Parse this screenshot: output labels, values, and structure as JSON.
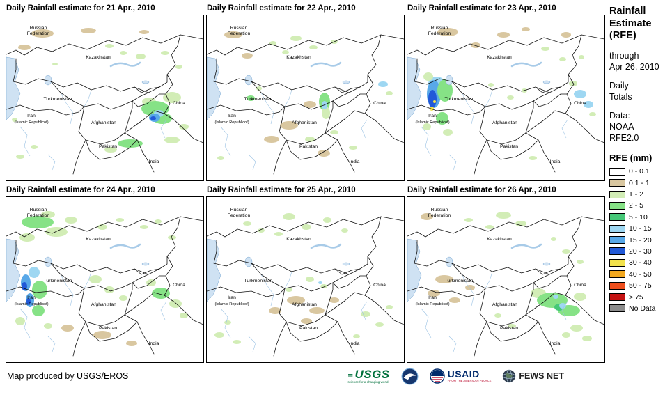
{
  "page": {
    "produced_by": "Map produced by USGS/EROS"
  },
  "map_labels": {
    "russia1": "Russian",
    "russia2": "Federation",
    "kazakhstan": "Kazakhstan",
    "turkmenistan": "Turkmenistan",
    "china": "China",
    "iran1": "Iran",
    "iran2": "(Islamic Republicof)",
    "afghanistan": "Afghanistan",
    "pakistan": "Pakistan",
    "india": "India"
  },
  "sidebar": {
    "title_lines": [
      "Rainfall",
      "Estimate",
      "(RFE)"
    ],
    "through_lines": [
      "through",
      "Apr 26, 2010"
    ],
    "totals_lines": [
      "Daily",
      "Totals"
    ],
    "source_lines": [
      "Data:",
      "NOAA-",
      "RFE2.0"
    ],
    "legend": {
      "title": "RFE (mm)",
      "items": [
        {
          "label": "0 - 0.1",
          "color": "#ffffff"
        },
        {
          "label": "0.1 - 1",
          "color": "#d9c7a0"
        },
        {
          "label": "1 - 2",
          "color": "#d2edb6"
        },
        {
          "label": "2 - 5",
          "color": "#86e286"
        },
        {
          "label": "5 - 10",
          "color": "#46c878"
        },
        {
          "label": "10 - 15",
          "color": "#9ed7f2"
        },
        {
          "label": "15 - 20",
          "color": "#58a8e8"
        },
        {
          "label": "20 - 30",
          "color": "#2159d8"
        },
        {
          "label": "30 - 40",
          "color": "#f2e24c"
        },
        {
          "label": "40 - 50",
          "color": "#f2a81f"
        },
        {
          "label": "50 - 75",
          "color": "#ee4f1d"
        },
        {
          "label": "> 75",
          "color": "#c41212"
        },
        {
          "label": "No Data",
          "color": "#8c8c8c"
        }
      ]
    }
  },
  "logos": {
    "usgs_name": "USGS",
    "usgs_tagline": "science for a changing world",
    "usaid_name": "USAID",
    "usaid_tagline": "FROM THE AMERICAN PEOPLE",
    "fews_name": "FEWS NET"
  },
  "panels": [
    {
      "title": "Daily Rainfall estimate for 21 Apr., 2010",
      "rain": [
        [
          52,
          26,
          16,
          6,
          1
        ],
        [
          118,
          22,
          11,
          4,
          1
        ],
        [
          26,
          46,
          9,
          4,
          1
        ],
        [
          198,
          24,
          7,
          3,
          1
        ],
        [
          148,
          44,
          6,
          3,
          2
        ],
        [
          168,
          54,
          5,
          3,
          2
        ],
        [
          193,
          59,
          7,
          4,
          2
        ],
        [
          228,
          54,
          6,
          3,
          2
        ],
        [
          248,
          74,
          5,
          3,
          2
        ],
        [
          205,
          124,
          10,
          6,
          2
        ],
        [
          238,
          118,
          13,
          8,
          2
        ],
        [
          214,
          134,
          20,
          11,
          3
        ],
        [
          224,
          148,
          14,
          8,
          3
        ],
        [
          219,
          141,
          7,
          5,
          5
        ],
        [
          213,
          147,
          8,
          6,
          6
        ],
        [
          211,
          148,
          4,
          3,
          7
        ],
        [
          178,
          184,
          18,
          6,
          3
        ],
        [
          150,
          193,
          9,
          4,
          2
        ],
        [
          238,
          179,
          11,
          5,
          2
        ],
        [
          255,
          160,
          7,
          4,
          2
        ],
        [
          20,
          203,
          6,
          3,
          2
        ],
        [
          40,
          189,
          5,
          3,
          2
        ],
        [
          12,
          150,
          4,
          3,
          2
        ],
        [
          70,
          70,
          4,
          2,
          2
        ]
      ]
    },
    {
      "title": "Daily Rainfall estimate for 22 Apr., 2010",
      "rain": [
        [
          38,
          28,
          13,
          5,
          1
        ],
        [
          58,
          58,
          8,
          4,
          1
        ],
        [
          148,
          128,
          9,
          5,
          1
        ],
        [
          118,
          158,
          13,
          6,
          1
        ],
        [
          93,
          178,
          11,
          5,
          1
        ],
        [
          168,
          198,
          9,
          5,
          1
        ],
        [
          128,
          33,
          8,
          4,
          2
        ],
        [
          153,
          46,
          6,
          3,
          2
        ],
        [
          183,
          38,
          5,
          3,
          2
        ],
        [
          113,
          53,
          5,
          3,
          2
        ],
        [
          95,
          40,
          5,
          3,
          2
        ],
        [
          169,
          124,
          8,
          13,
          3
        ],
        [
          171,
          140,
          6,
          9,
          2
        ],
        [
          169,
          129,
          4,
          6,
          5
        ],
        [
          63,
          119,
          6,
          4,
          3
        ],
        [
          75,
          105,
          4,
          3,
          2
        ],
        [
          253,
          99,
          7,
          4,
          5
        ],
        [
          262,
          112,
          5,
          3,
          2
        ],
        [
          148,
          178,
          7,
          4,
          2
        ],
        [
          183,
          168,
          6,
          3,
          2
        ],
        [
          210,
          190,
          6,
          3,
          2
        ],
        [
          20,
          205,
          5,
          3,
          2
        ]
      ]
    },
    {
      "title": "Daily Rainfall estimate for 23 Apr., 2010",
      "rain": [
        [
          58,
          24,
          15,
          6,
          1
        ],
        [
          138,
          28,
          9,
          4,
          1
        ],
        [
          98,
          43,
          7,
          4,
          1
        ],
        [
          228,
          28,
          7,
          4,
          1
        ],
        [
          170,
          20,
          6,
          3,
          1
        ],
        [
          42,
          98,
          12,
          10,
          5
        ],
        [
          38,
          113,
          10,
          20,
          6
        ],
        [
          36,
          120,
          6,
          13,
          7
        ],
        [
          35,
          134,
          3,
          3,
          8
        ],
        [
          39,
          124,
          2,
          2,
          8
        ],
        [
          54,
          108,
          11,
          16,
          3
        ],
        [
          50,
          148,
          9,
          9,
          3
        ],
        [
          30,
          88,
          7,
          6,
          2
        ],
        [
          58,
          168,
          7,
          5,
          2
        ],
        [
          28,
          160,
          6,
          5,
          2
        ],
        [
          248,
          113,
          9,
          6,
          5
        ],
        [
          260,
          128,
          7,
          5,
          5
        ],
        [
          238,
          98,
          6,
          4,
          2
        ],
        [
          266,
          142,
          5,
          3,
          2
        ],
        [
          198,
          48,
          6,
          3,
          2
        ],
        [
          223,
          63,
          5,
          3,
          2
        ],
        [
          250,
          60,
          4,
          3,
          2
        ],
        [
          148,
          118,
          5,
          3,
          2
        ],
        [
          168,
          108,
          4,
          3,
          2
        ],
        [
          120,
          100,
          4,
          3,
          2
        ],
        [
          180,
          205,
          6,
          3,
          2
        ]
      ]
    },
    {
      "title": "Daily Rainfall estimate for 24 Apr., 2010",
      "rain": [
        [
          45,
          36,
          23,
          9,
          3
        ],
        [
          72,
          50,
          16,
          7,
          2
        ],
        [
          30,
          58,
          11,
          6,
          2
        ],
        [
          93,
          33,
          9,
          5,
          2
        ],
        [
          60,
          25,
          10,
          5,
          2
        ],
        [
          138,
          43,
          7,
          4,
          2
        ],
        [
          163,
          33,
          6,
          3,
          2
        ],
        [
          198,
          43,
          6,
          3,
          2
        ],
        [
          238,
          58,
          6,
          3,
          2
        ],
        [
          218,
          35,
          5,
          3,
          2
        ],
        [
          40,
          108,
          8,
          8,
          5
        ],
        [
          28,
          123,
          7,
          12,
          6
        ],
        [
          34,
          148,
          6,
          10,
          6
        ],
        [
          26,
          128,
          4,
          6,
          7
        ],
        [
          32,
          150,
          3,
          5,
          7
        ],
        [
          48,
          133,
          11,
          13,
          3
        ],
        [
          46,
          163,
          9,
          8,
          3
        ],
        [
          20,
          178,
          7,
          6,
          2
        ],
        [
          60,
          185,
          6,
          4,
          2
        ],
        [
          128,
          118,
          9,
          6,
          2
        ],
        [
          148,
          133,
          7,
          5,
          2
        ],
        [
          168,
          145,
          6,
          4,
          2
        ],
        [
          222,
          138,
          13,
          8,
          3
        ],
        [
          243,
          153,
          9,
          6,
          2
        ],
        [
          208,
          123,
          7,
          5,
          2
        ],
        [
          255,
          170,
          6,
          4,
          2
        ],
        [
          138,
          198,
          13,
          6,
          1
        ],
        [
          88,
          188,
          9,
          5,
          1
        ],
        [
          180,
          210,
          8,
          4,
          1
        ]
      ]
    },
    {
      "title": "Daily Rainfall estimate for 25 Apr., 2010",
      "rain": [
        [
          118,
          28,
          9,
          5,
          2
        ],
        [
          143,
          43,
          7,
          4,
          2
        ],
        [
          173,
          33,
          6,
          4,
          2
        ],
        [
          103,
          53,
          6,
          3,
          2
        ],
        [
          198,
          48,
          5,
          3,
          2
        ],
        [
          58,
          38,
          6,
          3,
          2
        ],
        [
          78,
          48,
          5,
          3,
          2
        ],
        [
          128,
          148,
          13,
          6,
          1
        ],
        [
          158,
          163,
          11,
          5,
          1
        ],
        [
          98,
          163,
          9,
          5,
          1
        ],
        [
          183,
          148,
          7,
          4,
          1
        ],
        [
          143,
          178,
          8,
          4,
          1
        ],
        [
          148,
          118,
          6,
          4,
          2
        ],
        [
          168,
          128,
          5,
          3,
          2
        ],
        [
          118,
          133,
          5,
          3,
          2
        ],
        [
          163,
          123,
          3,
          2,
          5
        ],
        [
          18,
          198,
          7,
          4,
          2
        ],
        [
          43,
          208,
          6,
          3,
          2
        ],
        [
          30,
          180,
          5,
          3,
          2
        ],
        [
          228,
          168,
          7,
          4,
          2
        ],
        [
          248,
          183,
          6,
          3,
          2
        ],
        [
          262,
          158,
          5,
          3,
          2
        ],
        [
          215,
          200,
          5,
          3,
          2
        ]
      ]
    },
    {
      "title": "Daily Rainfall estimate for 26 Apr., 2010",
      "rain": [
        [
          138,
          26,
          11,
          5,
          2
        ],
        [
          163,
          38,
          8,
          4,
          2
        ],
        [
          118,
          43,
          6,
          3,
          2
        ],
        [
          88,
          33,
          6,
          3,
          2
        ],
        [
          28,
          28,
          9,
          5,
          1
        ],
        [
          53,
          118,
          13,
          6,
          1
        ],
        [
          38,
          138,
          9,
          5,
          1
        ],
        [
          68,
          148,
          8,
          4,
          1
        ],
        [
          90,
          130,
          7,
          4,
          1
        ],
        [
          188,
          138,
          11,
          7,
          2
        ],
        [
          208,
          148,
          22,
          11,
          3
        ],
        [
          232,
          163,
          16,
          8,
          3
        ],
        [
          248,
          143,
          9,
          6,
          2
        ],
        [
          218,
          158,
          7,
          5,
          4
        ],
        [
          223,
          156,
          5,
          4,
          5
        ],
        [
          213,
          143,
          4,
          3,
          5
        ],
        [
          243,
          188,
          9,
          5,
          2
        ],
        [
          258,
          203,
          7,
          4,
          2
        ],
        [
          228,
          198,
          6,
          4,
          2
        ],
        [
          228,
          78,
          6,
          3,
          2
        ],
        [
          248,
          93,
          5,
          3,
          2
        ],
        [
          210,
          60,
          4,
          3,
          2
        ],
        [
          150,
          185,
          6,
          3,
          2
        ],
        [
          130,
          170,
          5,
          3,
          2
        ]
      ]
    }
  ]
}
